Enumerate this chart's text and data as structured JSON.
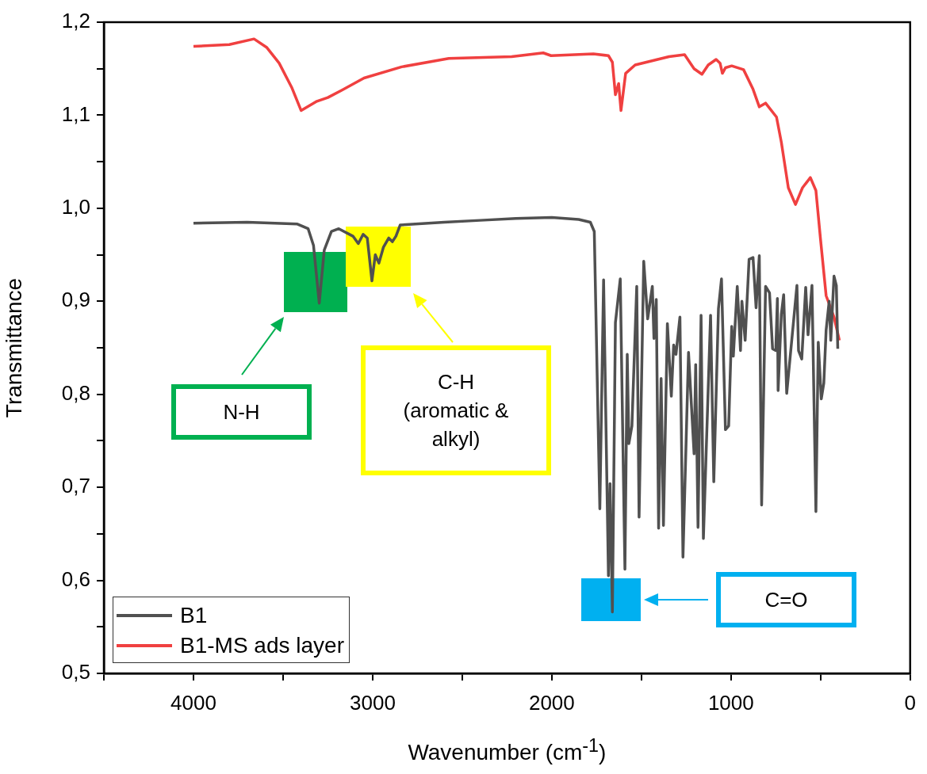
{
  "chart_data": {
    "type": "line",
    "xlabel": "Wavenumber (cm$^{-1}$)",
    "ylabel": "Transmittance",
    "xlim": [
      4500,
      0
    ],
    "ylim": [
      0.5,
      1.2
    ],
    "xticks": [
      {
        "value": 4500,
        "label": null
      },
      4000,
      {
        "value": 3500,
        "label": null
      },
      3000,
      {
        "value": 2500,
        "label": null
      },
      2000,
      {
        "value": 1500,
        "label": null
      },
      1000,
      {
        "value": 500,
        "label": null
      },
      0
    ],
    "yticks": [
      {
        "value": 0.5,
        "label": "0,5"
      },
      {
        "value": 0.55,
        "label": null
      },
      {
        "value": 0.6,
        "label": "0,6"
      },
      {
        "value": 0.65,
        "label": null
      },
      {
        "value": 0.7,
        "label": "0,7"
      },
      {
        "value": 0.75,
        "label": null
      },
      {
        "value": 0.8,
        "label": "0,8"
      },
      {
        "value": 0.85,
        "label": null
      },
      {
        "value": 0.9,
        "label": "0,9"
      },
      {
        "value": 0.95,
        "label": null
      },
      {
        "value": 1.0,
        "label": "1,0"
      },
      {
        "value": 1.05,
        "label": null
      },
      {
        "value": 1.1,
        "label": "1,1"
      },
      {
        "value": 1.15,
        "label": null
      },
      {
        "value": 1.2,
        "label": "1,2"
      }
    ],
    "legend": "bottom left",
    "series": [
      {
        "name": "B1",
        "color": "#505050",
        "x": [
          4000,
          3700,
          3420,
          3360,
          3330,
          3298,
          3270,
          3230,
          3189,
          3110,
          3080,
          3053,
          3030,
          3004,
          2985,
          2965,
          2940,
          2910,
          2890,
          2870,
          2846,
          2600,
          2400,
          2200,
          2000,
          1850,
          1785,
          1763,
          1732,
          1711,
          1684,
          1675,
          1662,
          1645,
          1618,
          1592,
          1579,
          1570,
          1553,
          1526,
          1513,
          1487,
          1465,
          1439,
          1430,
          1417,
          1404,
          1390,
          1377,
          1355,
          1333,
          1320,
          1307,
          1285,
          1268,
          1237,
          1206,
          1197,
          1184,
          1167,
          1154,
          1114,
          1096,
          1070,
          1053,
          1031,
          1013,
          996,
          987,
          965,
          947,
          939,
          921,
          899,
          877,
          860,
          842,
          829,
          807,
          785,
          768,
          750,
          741,
          737,
          719,
          706,
          689,
          658,
          632,
          623,
          605,
          583,
          570,
          548,
          526,
          513,
          496,
          482,
          469,
          452,
          443,
          425,
          412,
          404
        ],
        "values": [
          0.984,
          0.985,
          0.983,
          0.978,
          0.96,
          0.898,
          0.955,
          0.975,
          0.978,
          0.97,
          0.962,
          0.972,
          0.968,
          0.922,
          0.95,
          0.941,
          0.958,
          0.968,
          0.964,
          0.97,
          0.982,
          0.985,
          0.987,
          0.989,
          0.99,
          0.988,
          0.985,
          0.975,
          0.677,
          0.923,
          0.605,
          0.704,
          0.566,
          0.877,
          0.924,
          0.612,
          0.843,
          0.747,
          0.766,
          0.916,
          0.668,
          0.943,
          0.881,
          0.916,
          0.86,
          0.902,
          0.656,
          0.817,
          0.659,
          0.876,
          0.798,
          0.853,
          0.843,
          0.883,
          0.625,
          0.845,
          0.736,
          0.832,
          0.657,
          0.885,
          0.645,
          0.885,
          0.706,
          0.892,
          0.924,
          0.762,
          0.766,
          0.873,
          0.841,
          0.916,
          0.847,
          0.9,
          0.858,
          0.945,
          0.947,
          0.893,
          0.949,
          0.681,
          0.916,
          0.909,
          0.849,
          0.847,
          0.903,
          0.804,
          0.886,
          0.907,
          0.801,
          0.864,
          0.917,
          0.847,
          0.838,
          0.915,
          0.864,
          0.917,
          0.674,
          0.856,
          0.795,
          0.812,
          0.869,
          0.9,
          0.858,
          0.927,
          0.917,
          0.849
        ]
      },
      {
        "name": "B1-MS ads layer",
        "color": "#f04040",
        "x": [
          4000,
          3800,
          3662,
          3592,
          3522,
          3452,
          3399,
          3311,
          3250,
          3171,
          3048,
          2838,
          2575,
          2224,
          2048,
          2004,
          1768,
          1684,
          1662,
          1645,
          1627,
          1614,
          1588,
          1535,
          1346,
          1259,
          1206,
          1162,
          1127,
          1083,
          1061,
          1048,
          1031,
          996,
          930,
          877,
          842,
          807,
          746,
          719,
          680,
          640,
          601,
          557,
          526,
          500,
          469,
          425,
          395
        ],
        "values": [
          1.174,
          1.176,
          1.182,
          1.173,
          1.156,
          1.13,
          1.105,
          1.115,
          1.119,
          1.127,
          1.14,
          1.152,
          1.161,
          1.163,
          1.167,
          1.164,
          1.166,
          1.164,
          1.157,
          1.122,
          1.134,
          1.105,
          1.145,
          1.154,
          1.163,
          1.165,
          1.15,
          1.144,
          1.154,
          1.16,
          1.156,
          1.145,
          1.151,
          1.153,
          1.149,
          1.128,
          1.109,
          1.113,
          1.098,
          1.071,
          1.022,
          1.004,
          1.022,
          1.033,
          1.019,
          0.966,
          0.906,
          0.883,
          0.858
        ]
      }
    ],
    "annotations": [
      "N-H",
      "C-H\n(aromatic &\nalkyl)",
      "C=O"
    ]
  }
}
